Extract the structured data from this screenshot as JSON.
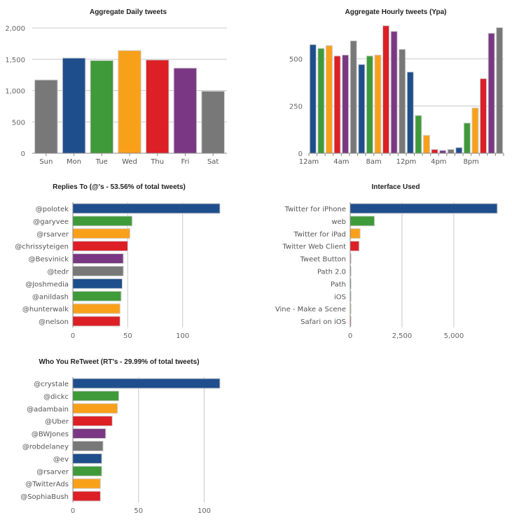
{
  "chart_data": [
    {
      "id": "daily",
      "type": "bar",
      "orientation": "vertical",
      "title": "Aggregate Daily tweets",
      "categories": [
        "Sun",
        "Mon",
        "Tue",
        "Wed",
        "Thu",
        "Fri",
        "Sat"
      ],
      "values": [
        1170,
        1520,
        1480,
        1640,
        1490,
        1360,
        990
      ],
      "ylim": [
        0,
        2000
      ],
      "yticks": [
        0,
        500,
        1000,
        1500,
        2000
      ],
      "ytick_labels": [
        "0",
        "500",
        "1,000",
        "1,500",
        "2,000"
      ],
      "grid": true
    },
    {
      "id": "hourly",
      "type": "bar",
      "orientation": "vertical",
      "title": "Aggregate Hourly tweets (Ypa)",
      "categories": [
        "12am",
        "1am",
        "2am",
        "3am",
        "4am",
        "5am",
        "6am",
        "7am",
        "8am",
        "9am",
        "10am",
        "11am",
        "12pm",
        "1pm",
        "2pm",
        "3pm",
        "4pm",
        "5pm",
        "6pm",
        "7pm",
        "8pm",
        "9pm",
        "10pm",
        "11pm"
      ],
      "values": [
        575,
        555,
        570,
        515,
        520,
        595,
        470,
        515,
        520,
        675,
        645,
        550,
        430,
        200,
        95,
        20,
        15,
        20,
        30,
        160,
        240,
        395,
        635,
        665
      ],
      "x_tick_labels": [
        {
          "label": "12am",
          "index": 0
        },
        {
          "label": "4am",
          "index": 4
        },
        {
          "label": "8am",
          "index": 8
        },
        {
          "label": "12pm",
          "index": 12
        },
        {
          "label": "4pm",
          "index": 16
        },
        {
          "label": "8pm",
          "index": 20
        }
      ],
      "ylim": [
        0,
        700
      ],
      "yticks": [
        0,
        250,
        500
      ],
      "ytick_labels": [
        "0",
        "250",
        "500"
      ],
      "grid": true
    },
    {
      "id": "replies",
      "type": "bar",
      "orientation": "horizontal",
      "title": "Replies To (@'s - 53.56% of total tweets)",
      "categories": [
        "@polotek",
        "@garyvee",
        "@rsarver",
        "@chrissyteigen",
        "@Besvinick",
        "@tedr",
        "@Joshmedia",
        "@anildash",
        "@hunterwalk",
        "@nelson"
      ],
      "values": [
        134,
        54,
        52,
        50,
        46,
        46,
        45,
        44,
        43,
        43
      ],
      "xlim": [
        0,
        134
      ],
      "xticks": [
        0,
        50,
        100
      ],
      "xtick_labels": [
        "0",
        "50",
        "100"
      ],
      "grid": true
    },
    {
      "id": "interface",
      "type": "bar",
      "orientation": "horizontal",
      "title": "Interface Used",
      "categories": [
        "Twitter for iPhone",
        "web",
        "Twitter for iPad",
        "Twitter Web Client",
        "Tweet Button",
        "Path 2.0",
        "Path",
        "iOS",
        "Vine - Make a Scene",
        "Safari on iOS"
      ],
      "values": [
        7100,
        1170,
        480,
        430,
        30,
        25,
        20,
        15,
        12,
        10
      ],
      "xlim": [
        0,
        7100
      ],
      "xticks": [
        0,
        2500,
        5000
      ],
      "xtick_labels": [
        "0",
        "2,500",
        "5,000"
      ],
      "grid": true
    },
    {
      "id": "retweets",
      "type": "bar",
      "orientation": "horizontal",
      "title": "Who You ReTweet (RT's - 29.99% of total tweets)",
      "categories": [
        "@crystale",
        "@dickc",
        "@adambain",
        "@Uber",
        "@BWJones",
        "@robdelaney",
        "@ev",
        "@rsarver",
        "@TwitterAds",
        "@SophiaBush"
      ],
      "values": [
        112,
        35,
        34,
        30,
        25,
        23,
        22,
        22,
        21,
        21
      ],
      "xlim": [
        0,
        112
      ],
      "xticks": [
        0,
        50,
        100
      ],
      "xtick_labels": [
        "0",
        "50",
        "100"
      ],
      "grid": true
    }
  ],
  "palette": [
    "#1f4e8c",
    "#3f9a3a",
    "#f9a01b",
    "#dd1f26",
    "#7a3884",
    "#787878"
  ],
  "palette_daily": [
    "#787878",
    "#1f4e8c",
    "#3f9a3a",
    "#f9a01b",
    "#dd1f26",
    "#7a3884",
    "#787878"
  ]
}
